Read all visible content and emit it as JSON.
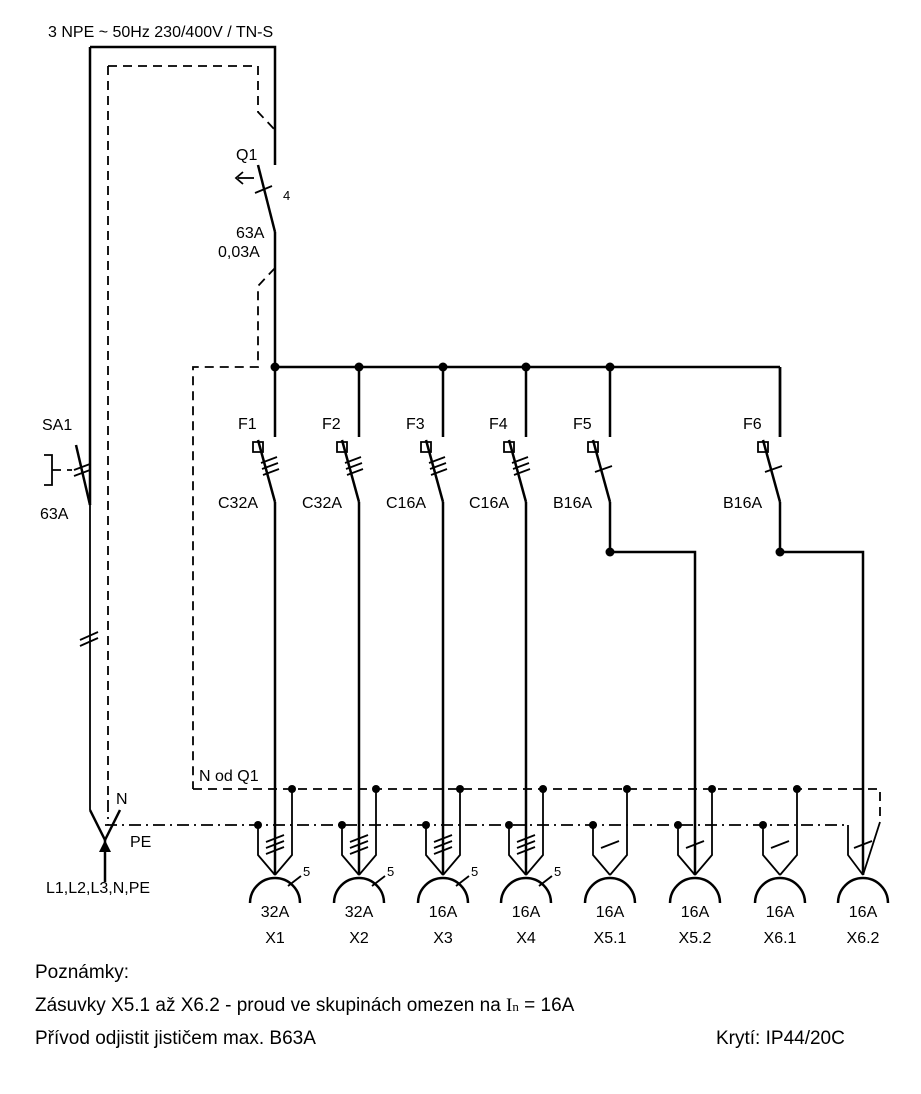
{
  "supply": "3 NPE ~ 50Hz  230/400V / TN-S",
  "main_switch": {
    "label": "SA1",
    "rating": "63A"
  },
  "rcd": {
    "label": "Q1",
    "poles": "4",
    "rating": "63A",
    "sensitivity": "0,03A"
  },
  "breakers": [
    {
      "label": "F1",
      "rating": "C32A"
    },
    {
      "label": "F2",
      "rating": "C32A"
    },
    {
      "label": "F3",
      "rating": "C16A"
    },
    {
      "label": "F4",
      "rating": "C16A"
    },
    {
      "label": "F5",
      "rating": "B16A"
    },
    {
      "label": "F6",
      "rating": "B16A"
    }
  ],
  "sockets": [
    {
      "label": "X1",
      "rating": "32A",
      "poles": "5"
    },
    {
      "label": "X2",
      "rating": "32A",
      "poles": "5"
    },
    {
      "label": "X3",
      "rating": "16A",
      "poles": "5"
    },
    {
      "label": "X4",
      "rating": "16A",
      "poles": "5"
    },
    {
      "label": "X5.1",
      "rating": "16A"
    },
    {
      "label": "X5.2",
      "rating": "16A"
    },
    {
      "label": "X6.1",
      "rating": "16A"
    },
    {
      "label": "X6.2",
      "rating": "16A"
    }
  ],
  "bus_labels": {
    "neutral_rcd": "N od Q1",
    "neutral": "N",
    "pe": "PE",
    "feed": "L1,L2,L3,N,PE"
  },
  "notes": {
    "heading": "Poznámky:",
    "line1_prefix": "Zásuvky X5.1 až X6.2 - proud ve skupinách omezen na ",
    "line1_symbol": "I",
    "line1_subscript": "n",
    "line1_suffix": " = 16A",
    "line2": "Přívod odjistit jističem max. B63A",
    "protection": "Krytí: IP44/20C"
  }
}
